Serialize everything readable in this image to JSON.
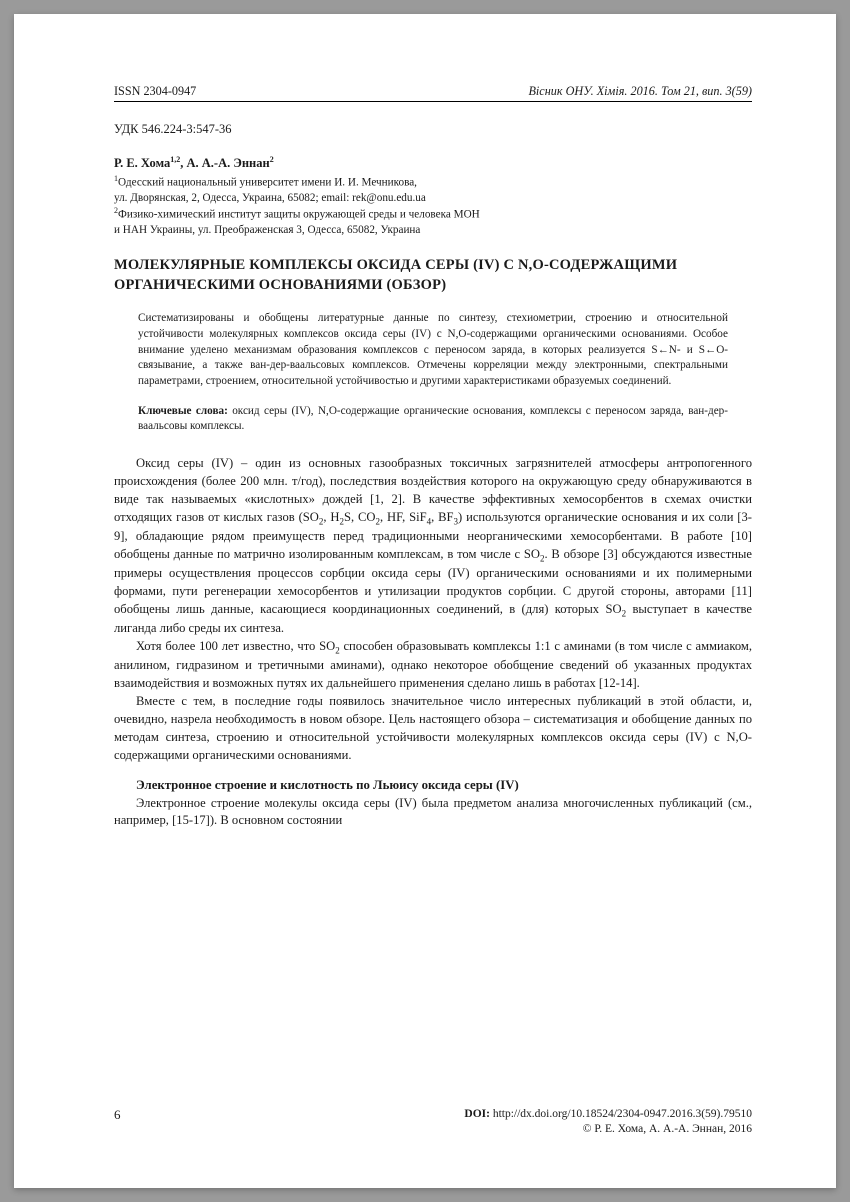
{
  "header": {
    "issn": "ISSN 2304-0947",
    "journal": "Вісник ОНУ. Хімія. 2016. Том 21, вип. 3(59)"
  },
  "udk": "УДК 546.224-3:547-36",
  "authors_html": "Р. Е. Хома<sup class=\"sup\">1,2</sup>, А. А.-А. Эннан<sup class=\"sup\">2</sup>",
  "affiliations_html": "<sup class=\"sup\">1</sup>Одесский национальный университет имени И. И. Мечникова,<br>ул. Дворянская, 2, Одесса, Украина, 65082; email: rek@onu.edu.ua<br><sup class=\"sup\">2</sup>Физико-химический институт защиты окружающей среды и человека МОН<br>и НАН Украины, ул. Преображенская 3, Одесса, 65082, Украина",
  "title": "МОЛЕКУЛЯРНЫЕ КОМПЛЕКСЫ ОКСИДА СЕРЫ (IV) С N,O-СОДЕРЖАЩИМИ ОРГАНИЧЕСКИМИ ОСНОВАНИЯМИ (ОБЗОР)",
  "abstract": "Систематизированы и обобщены литературные данные по синтезу, стехиометрии, строению и относительной устойчивости молекулярных комплексов оксида серы (IV) с N,O-содержащими органическими основаниями. Особое внимание уделено механизмам образования комплексов с переносом заряда, в которых реализуется S←N- и S←O-связывание, а также ван-дер-ваальсовых комплексов. Отмечены корреляции между электронными, спектральными параметрами, строением, относительной устойчивостью и другими характеристиками образуемых соединений.",
  "keywords": {
    "label": "Ключевые слова:",
    "text": " оксид серы (IV), N,O-содержащие органические основания, комплексы с переносом заряда, ван-дер-ваальсовы комплексы."
  },
  "body": {
    "p1_html": "Оксид серы (IV) – один из основных газообразных токсичных загрязнителей атмосферы антропогенного происхождения (более 200 млн. т/год), последствия воздействия которого на окружающую среду обнаруживаются в виде так называемых «кислотных» дождей [1, 2]. В качестве эффективных хемосорбентов в схемах очистки отходящих газов от кислых газов (SO<span class=\"sub\">2</span>, H<span class=\"sub\">2</span>S, CO<span class=\"sub\">2</span>, HF, SiF<span class=\"sub\">4</span>, BF<span class=\"sub\">3</span>) используются органические основания и их соли [3-9], обладающие рядом преимуществ перед традиционными неорганическими хемосорбентами. В работе [10] обобщены данные по матрично изолированным комплексам, в том числе с SO<span class=\"sub\">2</span>. В обзоре [3] обсуждаются известные примеры осуществления процессов сорбции оксида серы (IV) органическими основаниями и их полимерными формами, пути регенерации хемосорбентов и утилизации продуктов сорбции. С другой стороны, авторами [11] обобщены лишь данные, касающиеся координационных соединений, в (для) которых SO<span class=\"sub\">2</span> выступает в качестве лиганда либо среды их синтеза.",
    "p2_html": "Хотя более 100 лет известно, что SO<span class=\"sub\">2</span> способен образовывать комплексы 1:1 с аминами (в том числе с аммиаком, анилином, гидразином и третичными аминами), однако некоторое обобщение сведений об указанных продуктах взаимодействия и возможных путях их дальнейшего применения сделано лишь в работах [12-14].",
    "p3": "Вместе с тем, в последние годы появилось значительное число интересных публикаций в этой области, и, очевидно, назрела необходимость в новом обзоре. Цель настоящего обзора – систематизация и обобщение данных по методам синтеза, строению и относительной устойчивости молекулярных комплексов оксида серы (IV) с N,O-содержащими органическими основаниями.",
    "section_heading": "Электронное строение и кислотность по Льюису оксида серы (IV)",
    "p4": "Электронное строение молекулы оксида серы (IV) была предметом анализа многочисленных публикаций (см., например, [15-17]). В основном состоянии"
  },
  "footer": {
    "page_num": "6",
    "doi_label": "DOI:",
    "doi": " http://dx.doi.org/10.18524/2304-0947.2016.3(59).79510",
    "copyright": "© Р. Е. Хома, А. А.-А. Эннан, 2016"
  }
}
